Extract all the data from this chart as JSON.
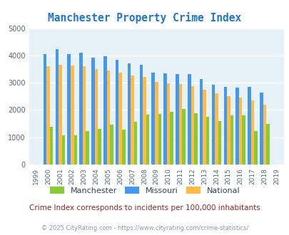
{
  "title": "Manchester Property Crime Index",
  "years": [
    1999,
    2000,
    2001,
    2002,
    2003,
    2004,
    2005,
    2006,
    2007,
    2008,
    2009,
    2010,
    2011,
    2012,
    2013,
    2014,
    2015,
    2016,
    2017,
    2018,
    2019
  ],
  "manchester": [
    null,
    1380,
    1060,
    1060,
    1220,
    1310,
    1460,
    1280,
    1560,
    1820,
    1850,
    1940,
    2040,
    1880,
    1760,
    1600,
    1800,
    1800,
    1220,
    1490,
    null
  ],
  "missouri": [
    null,
    4060,
    4240,
    4060,
    4090,
    3920,
    3960,
    3850,
    3720,
    3670,
    3380,
    3340,
    3310,
    3310,
    3140,
    2920,
    2860,
    2810,
    2850,
    2640,
    null
  ],
  "national": [
    null,
    3600,
    3660,
    3620,
    3600,
    3490,
    3450,
    3370,
    3260,
    3220,
    3040,
    2980,
    2950,
    2880,
    2730,
    2600,
    2500,
    2460,
    2360,
    2200,
    null
  ],
  "manchester_color": "#88cc33",
  "missouri_color": "#4499ee",
  "national_color": "#ffbb44",
  "bg_color": "#e6f2f8",
  "ylim": [
    0,
    5000
  ],
  "yticks": [
    0,
    1000,
    2000,
    3000,
    4000,
    5000
  ],
  "legend_labels": [
    "Manchester",
    "Missouri",
    "National"
  ],
  "footnote": "Crime Index corresponds to incidents per 100,000 inhabitants",
  "copyright": "© 2025 CityRating.com - https://www.cityrating.com/crime-statistics/",
  "title_color": "#2277cc",
  "footnote_color": "#992222",
  "copyright_color": "#8899aa"
}
